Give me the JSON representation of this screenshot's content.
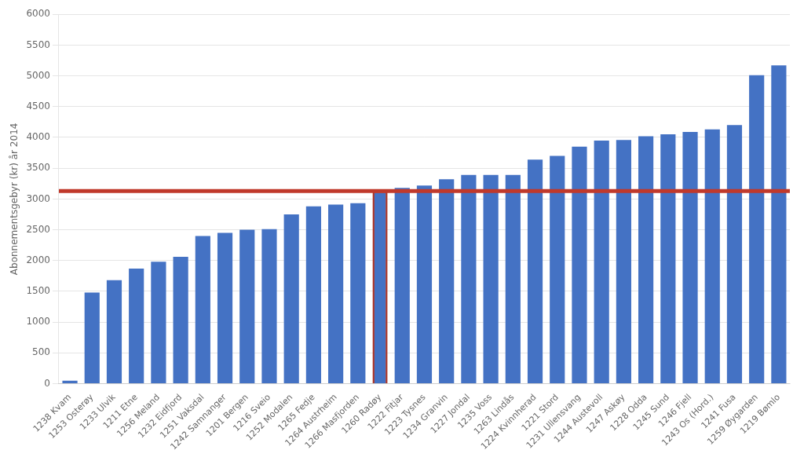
{
  "chart_data": {
    "type": "bar",
    "ylabel": "Abonnementsgebyr (kr) år 2014",
    "categories": [
      "1238 Kvam",
      "1253 Osterøy",
      "1233 Ulvik",
      "1211 Etne",
      "1256 Meland",
      "1232 Eidfjord",
      "1251 Vaksdal",
      "1242 Samnanger",
      "1201 Bergen",
      "1216 Sveio",
      "1252 Modalen",
      "1265 Fedje",
      "1264 Austrheim",
      "1266 Masfjorden",
      "1260 Radøy",
      "1222 Fitjar",
      "1223 Tysnes",
      "1234 Granvin",
      "1227 Jondal",
      "1235 Voss",
      "1263 Lindås",
      "1224 Kvinnherad",
      "1221 Stord",
      "1231 Ullensvang",
      "1244 Austevoll",
      "1247 Askøy",
      "1228 Odda",
      "1245 Sund",
      "1246 Fjell",
      "1243 Os (Hord.)",
      "1241 Fusa",
      "1259 Øygarden",
      "1219 Bømlo"
    ],
    "values": [
      50,
      1480,
      1680,
      1870,
      1980,
      2060,
      2400,
      2450,
      2500,
      2510,
      2750,
      2880,
      2910,
      2930,
      3130,
      3180,
      3220,
      3320,
      3390,
      3390,
      3390,
      3640,
      3700,
      3850,
      3950,
      3960,
      4020,
      4050,
      4090,
      4130,
      4200,
      5010,
      5170
    ],
    "color": "#4472C4",
    "highlight": "1260 Radøy",
    "highlight_color": "#A93226",
    "reference_line": 3130,
    "reference_line_color": "#C0392B",
    "ylim": [
      0,
      6000
    ],
    "yticks": [
      0,
      500,
      1000,
      1500,
      2000,
      2500,
      3000,
      3500,
      4000,
      4500,
      5000,
      5500,
      6000
    ],
    "grid": true
  }
}
